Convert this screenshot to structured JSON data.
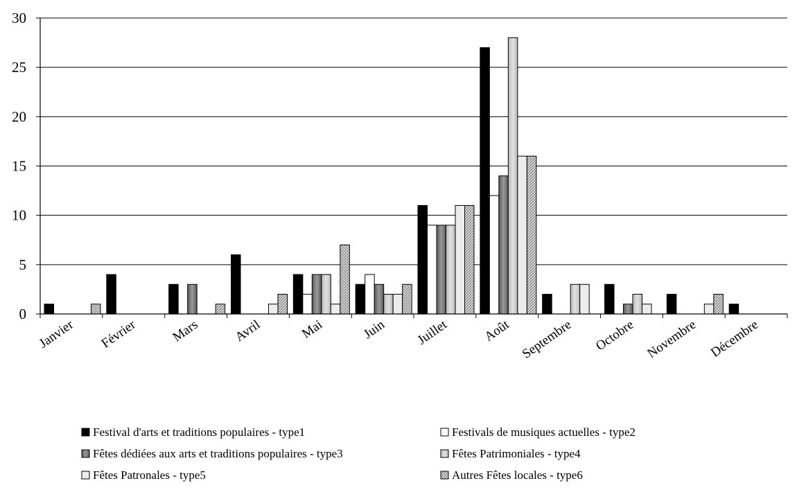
{
  "chart_data": {
    "type": "bar",
    "categories": [
      "Janvier",
      "Février",
      "Mars",
      "Avril",
      "Mai",
      "Juin",
      "Juillet",
      "Août",
      "Septembre",
      "Octobre",
      "Novembre",
      "Décembre"
    ],
    "series": [
      {
        "name": "Festival d'arts et traditions populaires - type1",
        "color": "#000000",
        "pattern": "solid-black",
        "values": [
          1,
          4,
          3,
          6,
          4,
          3,
          11,
          27,
          2,
          3,
          2,
          1
        ]
      },
      {
        "name": "Festivals de musiques actuelles - type2",
        "color": "#ffffff",
        "pattern": "white",
        "values": [
          0,
          0,
          0,
          0,
          2,
          4,
          9,
          12,
          0,
          0,
          0,
          0
        ]
      },
      {
        "name": "Fêtes dédiées aux arts et traditions populaires - type3",
        "color": "#808080",
        "pattern": "gray-gradient",
        "values": [
          0,
          0,
          3,
          0,
          4,
          3,
          9,
          14,
          0,
          1,
          0,
          0
        ]
      },
      {
        "name": "Fêtes Patrimoniales - type4",
        "color": "#cccccc",
        "pattern": "light-gray",
        "values": [
          0,
          0,
          0,
          0,
          4,
          2,
          9,
          28,
          3,
          2,
          0,
          0
        ]
      },
      {
        "name": "Fêtes Patronales - type5",
        "color": "#e6e6e6",
        "pattern": "very-light-gray",
        "values": [
          0,
          0,
          0,
          1,
          1,
          2,
          11,
          16,
          3,
          1,
          1,
          0
        ]
      },
      {
        "name": "Autres Fêtes locales - type6",
        "color": "#b0b0b0",
        "pattern": "hatched",
        "values": [
          1,
          0,
          1,
          2,
          7,
          3,
          11,
          16,
          0,
          0,
          2,
          0
        ]
      }
    ],
    "ylim": [
      0,
      30
    ],
    "yticks": [
      0,
      5,
      10,
      15,
      20,
      25,
      30
    ],
    "grid": true,
    "legend_position": "bottom"
  }
}
